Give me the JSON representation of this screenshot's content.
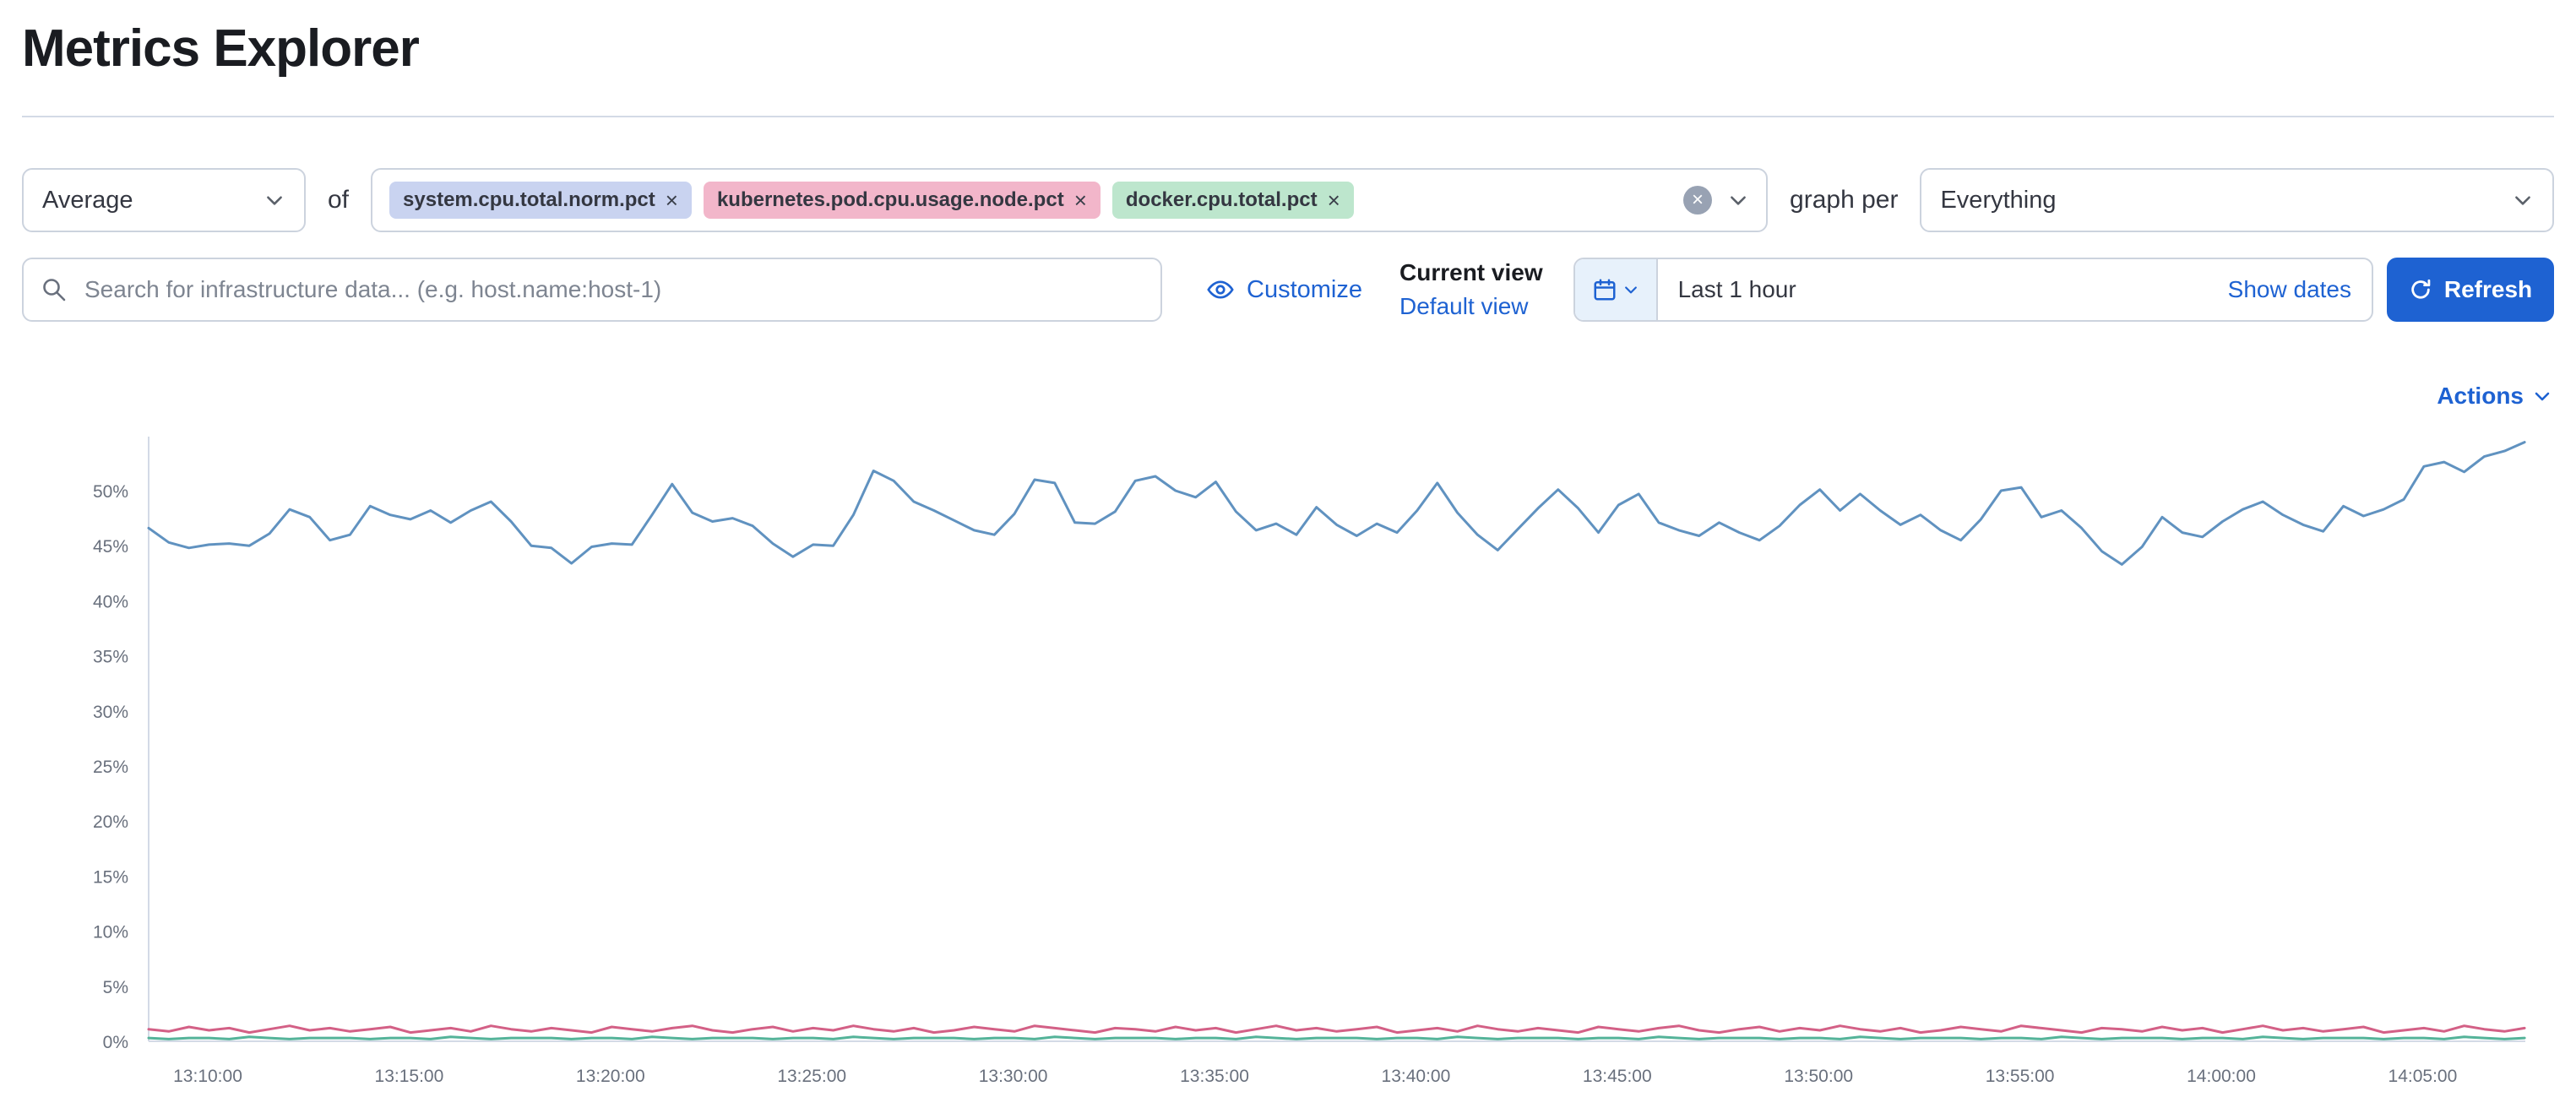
{
  "page": {
    "title": "Metrics Explorer"
  },
  "colors": {
    "accent_blue": "#1e62d2",
    "series_blue": "#6092c0",
    "series_pink": "#d36086",
    "series_green": "#54b399",
    "badge_blue_bg": "#c9d3f0",
    "badge_pink_bg": "#f2b6ca",
    "badge_green_bg": "#bde6cd"
  },
  "icons": {
    "search": "magnifier-icon",
    "customize": "eye-icon",
    "date": "calendar-icon",
    "refresh": "refresh-arrow-icon",
    "clear": "circled-x-icon",
    "dropdown": "chevron-down-icon",
    "remove_pill": "x-icon"
  },
  "toolbar": {
    "aggregation": {
      "value": "Average"
    },
    "of_label": "of",
    "metrics": [
      {
        "label": "system.cpu.total.norm.pct",
        "color": "#c9d3f0"
      },
      {
        "label": "kubernetes.pod.cpu.usage.node.pct",
        "color": "#f2b6ca"
      },
      {
        "label": "docker.cpu.total.pct",
        "color": "#bde6cd"
      }
    ],
    "graph_per_label": "graph per",
    "group_by": {
      "value": "Everything"
    }
  },
  "controls": {
    "search": {
      "placeholder": "Search for infrastructure data... (e.g. host.name:host-1)"
    },
    "customize_label": "Customize",
    "current_view_label": "Current view",
    "default_view_label": "Default view",
    "time_range": {
      "value": "Last 1 hour",
      "show_dates_label": "Show dates"
    },
    "refresh_label": "Refresh"
  },
  "actions_label": "Actions",
  "chart_data": {
    "type": "line",
    "title": "",
    "xlabel": "",
    "ylabel": "",
    "grid": false,
    "legend": "none",
    "ylim": [
      0,
      56
    ],
    "x_start": "13:08:30",
    "x_end": "14:07:30",
    "sample_interval_sec": 30,
    "x_tick_labels": [
      "13:10:00",
      "13:15:00",
      "13:20:00",
      "13:25:00",
      "13:30:00",
      "13:35:00",
      "13:40:00",
      "13:45:00",
      "13:50:00",
      "13:55:00",
      "14:00:00",
      "14:05:00"
    ],
    "y_ticks": [
      0,
      5,
      10,
      15,
      20,
      25,
      30,
      35,
      40,
      45,
      50
    ],
    "y_tick_labels": [
      "0%",
      "5%",
      "10%",
      "15%",
      "20%",
      "25%",
      "30%",
      "35%",
      "40%",
      "45%",
      "50%"
    ],
    "series": [
      {
        "name": "system.cpu.total.norm.pct",
        "color": "#6092c0",
        "values": [
          46.6,
          45.3,
          44.8,
          45.1,
          45.2,
          45.0,
          46.1,
          48.3,
          47.6,
          45.5,
          46.0,
          48.6,
          47.8,
          47.4,
          48.2,
          47.1,
          48.2,
          49.0,
          47.2,
          45.0,
          44.8,
          43.4,
          44.9,
          45.2,
          45.1,
          47.8,
          50.6,
          48.0,
          47.2,
          47.5,
          46.8,
          45.2,
          44.0,
          45.1,
          45.0,
          47.8,
          51.8,
          50.9,
          49.0,
          48.2,
          47.3,
          46.4,
          46.0,
          47.9,
          51.0,
          50.7,
          47.1,
          47.0,
          48.1,
          50.9,
          51.3,
          50.0,
          49.4,
          50.8,
          48.1,
          46.4,
          47.0,
          46.0,
          48.5,
          46.9,
          45.9,
          47.0,
          46.2,
          48.2,
          50.7,
          48.0,
          46.0,
          44.6,
          46.5,
          48.4,
          50.1,
          48.4,
          46.2,
          48.7,
          49.7,
          47.1,
          46.4,
          45.9,
          47.1,
          46.2,
          45.5,
          46.8,
          48.7,
          50.1,
          48.2,
          49.7,
          48.2,
          46.9,
          47.8,
          46.4,
          45.5,
          47.4,
          50.0,
          50.3,
          47.6,
          48.2,
          46.6,
          44.5,
          43.3,
          44.9,
          47.6,
          46.2,
          45.8,
          47.2,
          48.3,
          49.0,
          47.8,
          46.9,
          46.3,
          48.6,
          47.7,
          48.3,
          49.2,
          52.2,
          52.6,
          51.7,
          53.1,
          53.6,
          54.4
        ]
      },
      {
        "name": "kubernetes.pod.cpu.usage.node.pct",
        "color": "#d36086",
        "values": [
          1.1,
          0.9,
          1.3,
          1.0,
          1.2,
          0.8,
          1.1,
          1.4,
          1.0,
          1.2,
          0.9,
          1.1,
          1.3,
          0.8,
          1.0,
          1.2,
          0.9,
          1.4,
          1.1,
          0.9,
          1.2,
          1.0,
          0.8,
          1.3,
          1.1,
          0.9,
          1.2,
          1.4,
          1.0,
          0.8,
          1.1,
          1.3,
          0.9,
          1.2,
          1.0,
          1.4,
          1.1,
          0.9,
          1.2,
          0.8,
          1.0,
          1.3,
          1.1,
          0.9,
          1.4,
          1.2,
          1.0,
          0.8,
          1.2,
          1.1,
          0.9,
          1.3,
          1.0,
          1.2,
          0.8,
          1.1,
          1.4,
          1.0,
          1.2,
          0.9,
          1.1,
          1.3,
          0.8,
          1.0,
          1.2,
          0.9,
          1.4,
          1.1,
          0.9,
          1.2,
          1.0,
          0.8,
          1.3,
          1.1,
          0.9,
          1.2,
          1.4,
          1.0,
          0.8,
          1.1,
          1.3,
          0.9,
          1.2,
          1.0,
          1.4,
          1.1,
          0.9,
          1.2,
          0.8,
          1.0,
          1.3,
          1.1,
          0.9,
          1.4,
          1.2,
          1.0,
          0.8,
          1.2,
          1.1,
          0.9,
          1.3,
          1.0,
          1.2,
          0.8,
          1.1,
          1.4,
          1.0,
          1.2,
          0.9,
          1.1,
          1.3,
          0.8,
          1.0,
          1.2,
          0.9,
          1.4,
          1.1,
          0.9,
          1.2
        ]
      },
      {
        "name": "docker.cpu.total.pct",
        "color": "#54b399",
        "values": [
          0.3,
          0.2,
          0.3,
          0.3,
          0.2,
          0.4,
          0.3,
          0.2,
          0.3,
          0.3,
          0.3,
          0.2,
          0.3,
          0.3,
          0.2,
          0.4,
          0.3,
          0.2,
          0.3,
          0.3,
          0.3,
          0.2,
          0.3,
          0.3,
          0.2,
          0.4,
          0.3,
          0.2,
          0.3,
          0.3,
          0.3,
          0.2,
          0.3,
          0.3,
          0.2,
          0.4,
          0.3,
          0.2,
          0.3,
          0.3,
          0.3,
          0.2,
          0.3,
          0.3,
          0.2,
          0.4,
          0.3,
          0.2,
          0.3,
          0.3,
          0.3,
          0.2,
          0.3,
          0.3,
          0.2,
          0.4,
          0.3,
          0.2,
          0.3,
          0.3,
          0.3,
          0.2,
          0.3,
          0.3,
          0.2,
          0.4,
          0.3,
          0.2,
          0.3,
          0.3,
          0.3,
          0.2,
          0.3,
          0.3,
          0.2,
          0.4,
          0.3,
          0.2,
          0.3,
          0.3,
          0.3,
          0.2,
          0.3,
          0.3,
          0.2,
          0.4,
          0.3,
          0.2,
          0.3,
          0.3,
          0.3,
          0.2,
          0.3,
          0.3,
          0.2,
          0.4,
          0.3,
          0.2,
          0.3,
          0.3,
          0.3,
          0.2,
          0.3,
          0.3,
          0.2,
          0.4,
          0.3,
          0.2,
          0.3,
          0.3,
          0.3,
          0.2,
          0.3,
          0.3,
          0.2,
          0.4,
          0.3,
          0.2,
          0.3
        ]
      }
    ]
  }
}
